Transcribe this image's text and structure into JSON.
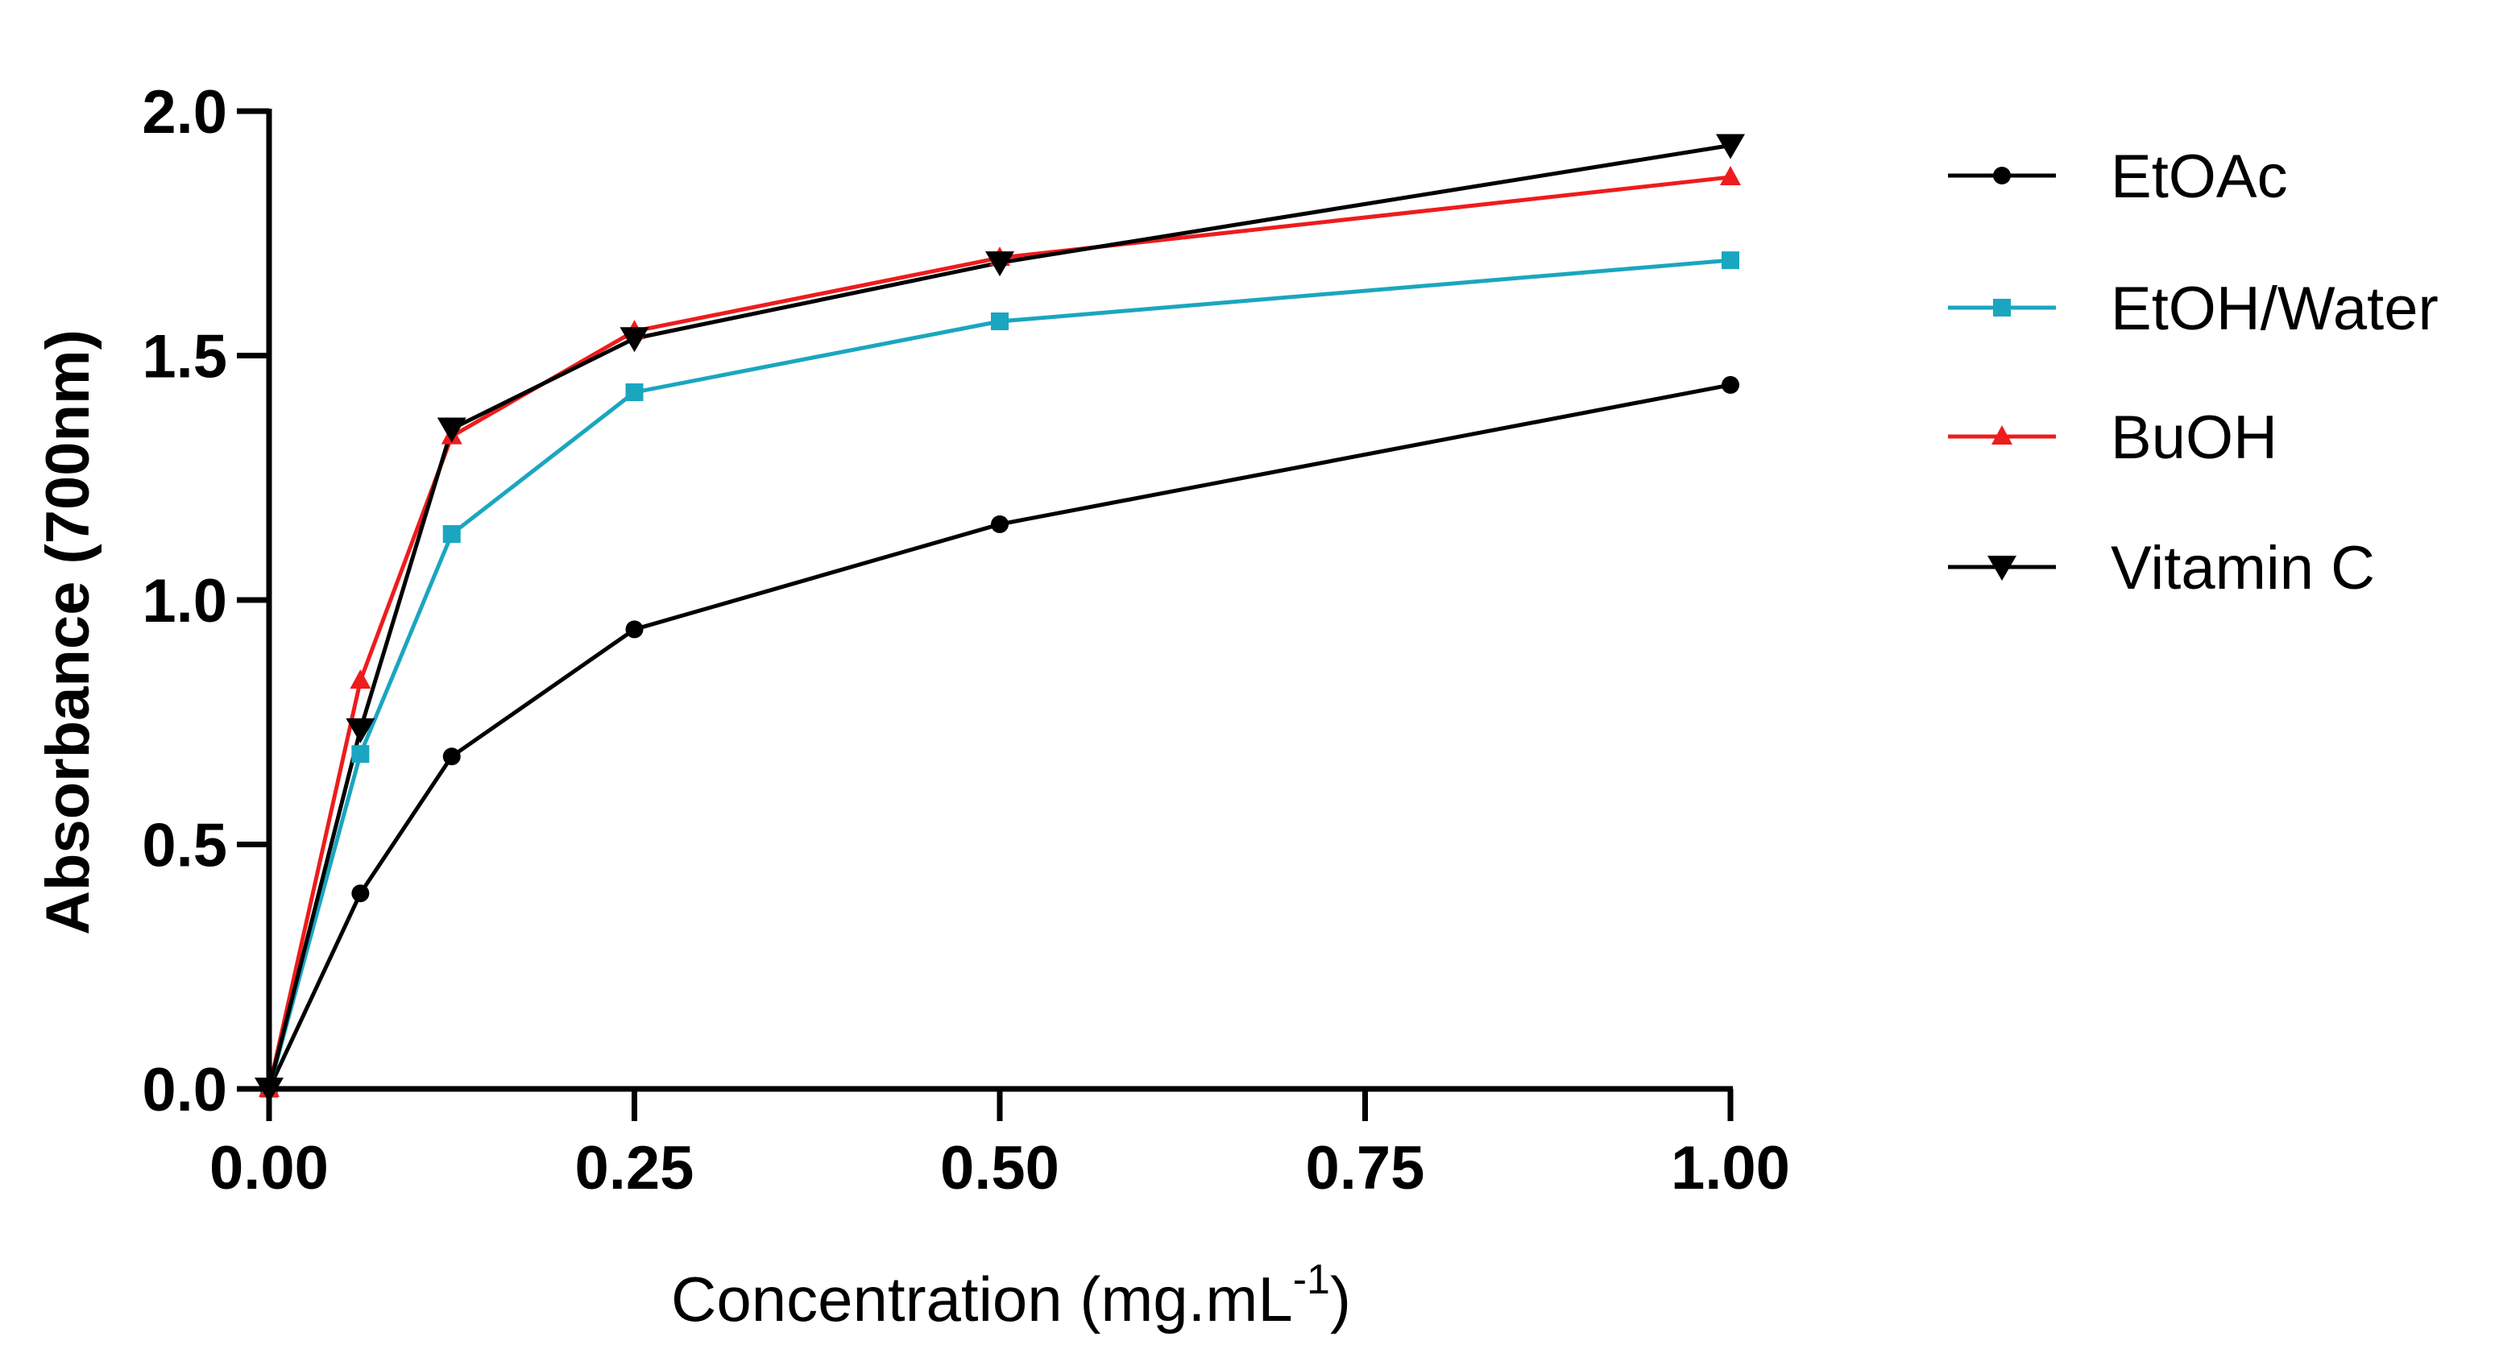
{
  "chart_data": {
    "type": "line",
    "title": "",
    "xlabel": "Concentration (mg.mL",
    "xlabel_superscript": "-1",
    "xlabel_suffix": ")",
    "ylabel": "Absorbance (700nm)",
    "xlim": [
      0,
      1.0
    ],
    "ylim": [
      0,
      2.0
    ],
    "x": [
      0,
      0.0625,
      0.125,
      0.25,
      0.5,
      1.0
    ],
    "xticks": [
      "0.00",
      "0.25",
      "0.50",
      "0.75",
      "1.00"
    ],
    "xtick_values": [
      0,
      0.25,
      0.5,
      0.75,
      1.0
    ],
    "yticks": [
      "0.0",
      "0.5",
      "1.0",
      "1.5",
      "2.0"
    ],
    "ytick_values": [
      0,
      0.5,
      1.0,
      1.5,
      2.0
    ],
    "grid": false,
    "legend_position": "right",
    "series": [
      {
        "name": "EtOAc",
        "color": "#000000",
        "marker": "circle",
        "values": [
          0,
          0.4,
          0.68,
          0.94,
          1.155,
          1.44
        ]
      },
      {
        "name": "EtOH/Water",
        "color": "#1aa6c0",
        "marker": "square",
        "values": [
          0,
          0.685,
          1.135,
          1.425,
          1.57,
          1.695
        ]
      },
      {
        "name": "BuOH",
        "color": "#ee1c1c",
        "marker": "triangle-up",
        "values": [
          0,
          0.835,
          1.335,
          1.55,
          1.7,
          1.865
        ]
      },
      {
        "name": "Vitamin C",
        "color": "#000000",
        "marker": "triangle-down",
        "values": [
          0,
          0.735,
          1.35,
          1.535,
          1.69,
          1.93
        ]
      }
    ]
  }
}
